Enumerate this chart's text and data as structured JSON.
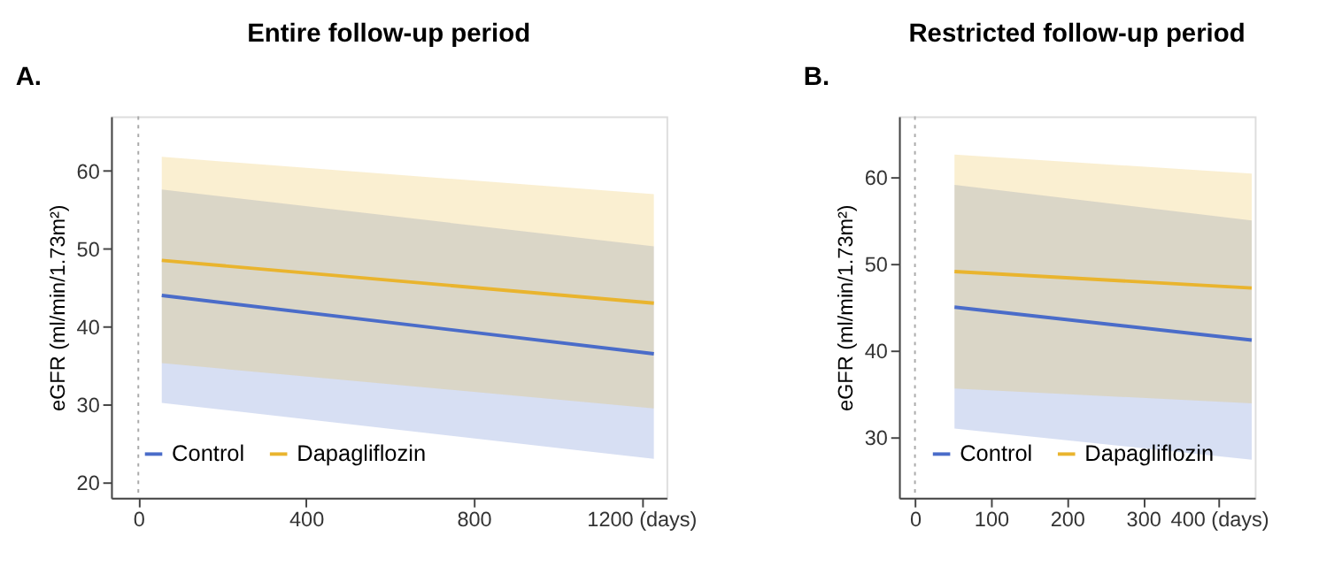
{
  "chart_data": [
    {
      "type": "line",
      "title": "Entire follow-up period",
      "annotations": [
        "A."
      ],
      "ylabel": "eGFR (ml/min/1.73m²)",
      "xlim": [
        -65,
        1260
      ],
      "xticks": [
        0,
        400,
        800,
        {
          "value": 1200,
          "label": "1200 (days)"
        }
      ],
      "ylim": [
        18,
        67
      ],
      "yticks": [
        20,
        30,
        40,
        50,
        60
      ],
      "grid": false,
      "legend": "bottom left",
      "ref_lines": [
        {
          "axis": "x",
          "value": 0,
          "label": null,
          "color": "#aaaaaa",
          "line_style": "dotted"
        }
      ],
      "series": [
        {
          "name": "Control",
          "color": "#4a6cc9",
          "x": [
            56,
            1230
          ],
          "values": [
            44,
            36.5
          ],
          "lower": [
            30.2,
            23
          ],
          "upper": [
            57.6,
            50.3
          ]
        },
        {
          "name": "Dapagliflozin",
          "color": "#e9b42e",
          "x": [
            56,
            1230
          ],
          "values": [
            48.5,
            43
          ],
          "lower": [
            35.3,
            29.5
          ],
          "upper": [
            61.8,
            57
          ]
        }
      ]
    },
    {
      "type": "line",
      "title": "Restricted follow-up period",
      "annotations": [
        "B."
      ],
      "ylabel": "eGFR (ml/min/1.73m²)",
      "xlim": [
        -21,
        447
      ],
      "xticks": [
        0,
        100,
        200,
        300,
        {
          "value": 400,
          "label": "400 (days)"
        }
      ],
      "ylim": [
        23,
        67
      ],
      "yticks": [
        30,
        40,
        50,
        60
      ],
      "grid": false,
      "legend": "bottom left",
      "ref_lines": [
        {
          "axis": "x",
          "value": 0,
          "label": null,
          "color": "#aaaaaa",
          "line_style": "dotted"
        }
      ],
      "series": [
        {
          "name": "Control",
          "color": "#4a6cc9",
          "x": [
            52,
            443
          ],
          "values": [
            45,
            41.2
          ],
          "lower": [
            31,
            27.4
          ],
          "upper": [
            59.1,
            55
          ]
        },
        {
          "name": "Dapagliflozin",
          "color": "#e9b42e",
          "x": [
            52,
            443
          ],
          "values": [
            49.1,
            47.2
          ],
          "lower": [
            35.6,
            33.9
          ],
          "upper": [
            62.6,
            60.4
          ]
        }
      ]
    }
  ]
}
